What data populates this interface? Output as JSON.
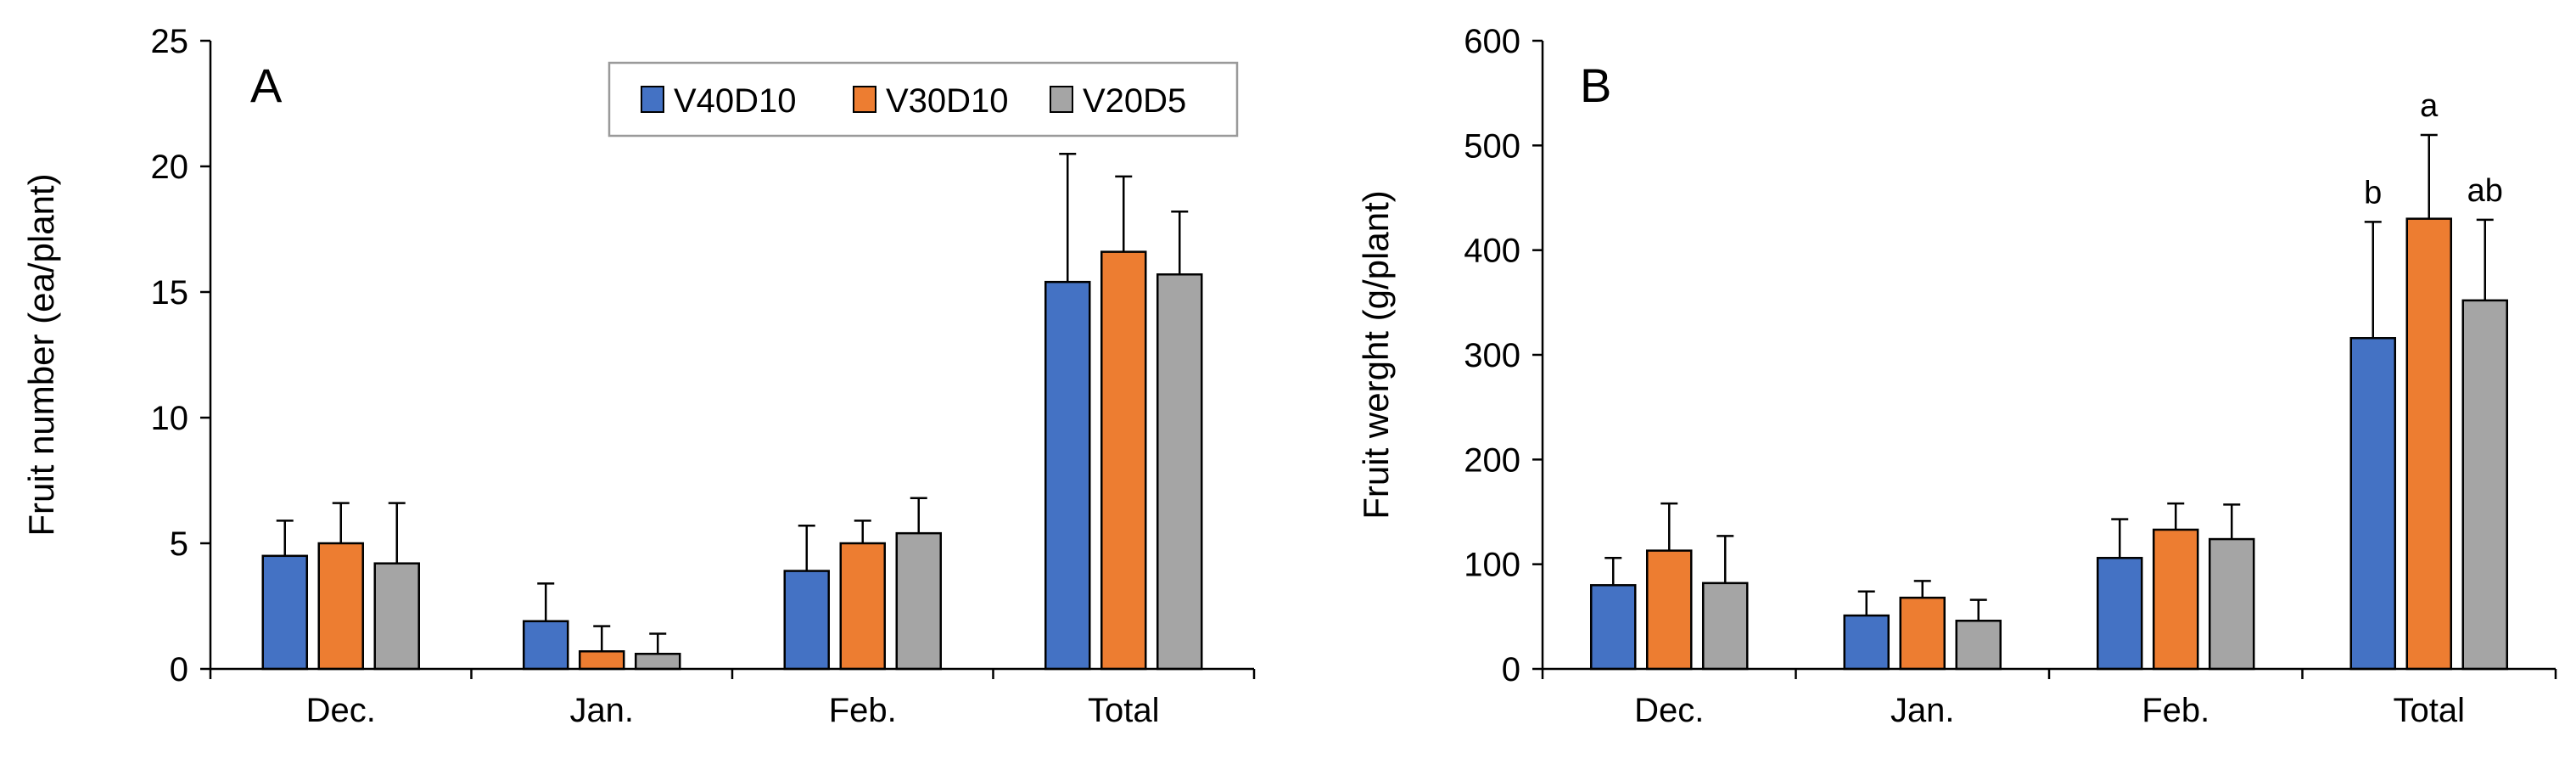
{
  "chart_data": [
    {
      "type": "bar",
      "panel_label": "A",
      "categories": [
        "Dec.",
        "Jan.",
        "Feb.",
        "Total"
      ],
      "series": [
        {
          "name": "V40D10",
          "color": "#4472C4",
          "values": [
            4.5,
            1.9,
            3.9,
            15.4
          ],
          "errors": [
            1.4,
            1.5,
            1.8,
            5.1
          ]
        },
        {
          "name": "V30D10",
          "color": "#ED7D31",
          "values": [
            5.0,
            0.7,
            5.0,
            16.6
          ],
          "errors": [
            1.6,
            1.0,
            0.9,
            3.0
          ]
        },
        {
          "name": "V20D5",
          "color": "#A5A5A5",
          "values": [
            4.2,
            0.6,
            5.4,
            15.7
          ],
          "errors": [
            2.4,
            0.8,
            1.4,
            2.5
          ]
        }
      ],
      "xlabel": "",
      "ylabel": "Fruit number (ea/plant)",
      "ylim": [
        0,
        25
      ],
      "yticks": [
        "0",
        "5",
        "10",
        "15",
        "20",
        "25"
      ],
      "grid": false,
      "legend_position": "top-right"
    },
    {
      "type": "bar",
      "panel_label": "B",
      "categories": [
        "Dec.",
        "Jan.",
        "Feb.",
        "Total"
      ],
      "series": [
        {
          "name": "V40D10",
          "color": "#4472C4",
          "values": [
            80,
            51,
            106,
            316
          ],
          "errors": [
            26,
            23,
            37,
            111
          ],
          "annotations": [
            "",
            "",
            "",
            "b"
          ]
        },
        {
          "name": "V30D10",
          "color": "#ED7D31",
          "values": [
            113,
            68,
            133,
            430
          ],
          "errors": [
            45,
            16,
            25,
            80
          ],
          "annotations": [
            "",
            "",
            "",
            "a"
          ]
        },
        {
          "name": "V20D5",
          "color": "#A5A5A5",
          "values": [
            82,
            46,
            124,
            352
          ],
          "errors": [
            45,
            20,
            33,
            77
          ],
          "annotations": [
            "",
            "",
            "",
            "ab"
          ]
        }
      ],
      "xlabel": "",
      "ylabel": "Fruit werght (g/plant)",
      "ylim": [
        0,
        600
      ],
      "yticks": [
        "0",
        "100",
        "200",
        "300",
        "400",
        "500",
        "600"
      ],
      "grid": false,
      "legend_position": "none"
    }
  ]
}
